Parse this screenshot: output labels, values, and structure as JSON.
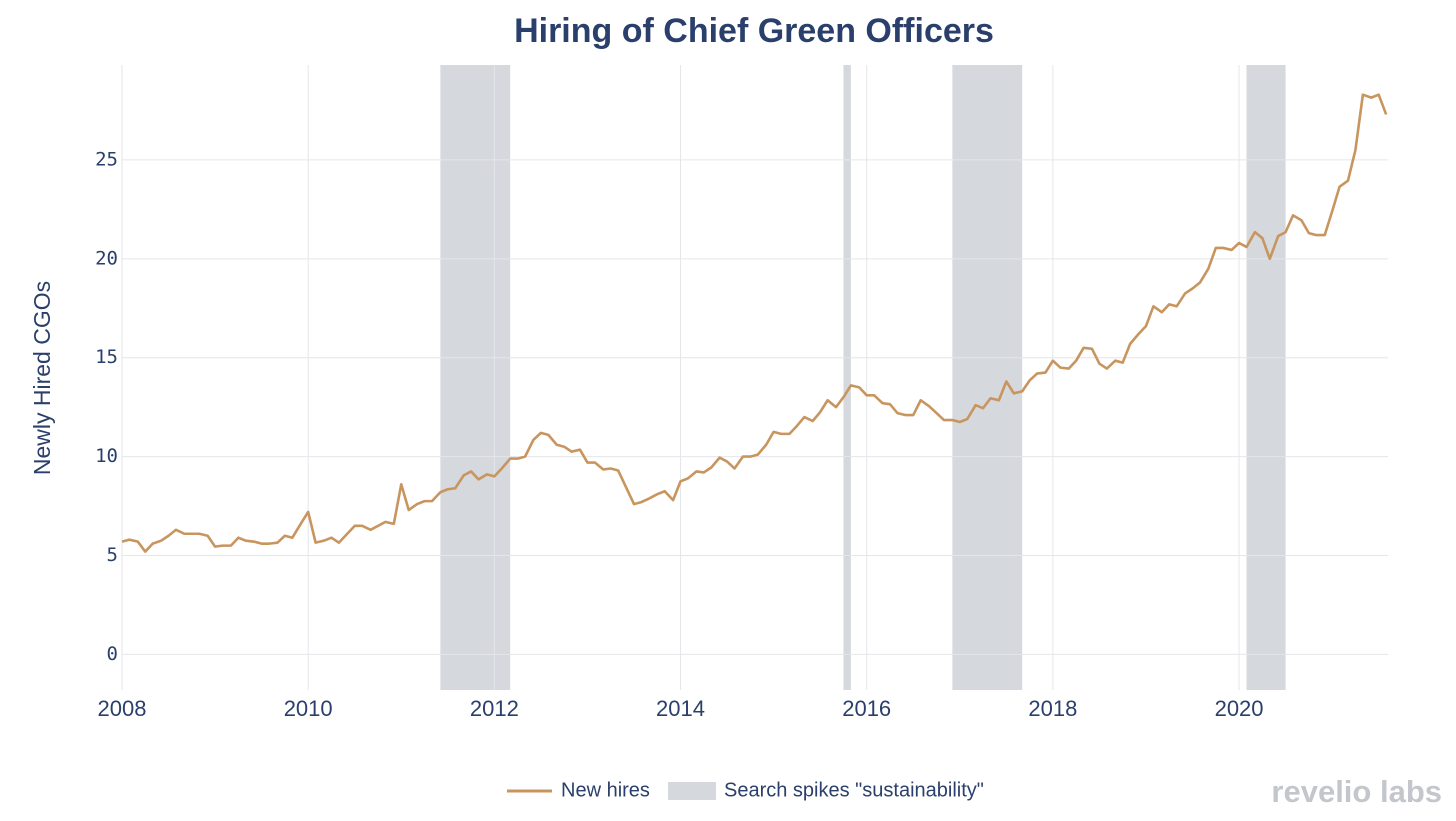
{
  "chart_data": {
    "type": "line",
    "title": "Hiring of Chief Green Officers",
    "y_label": "Newly Hired CGOs",
    "logo": "revelio labs",
    "xlim": [
      2008,
      2021.6
    ],
    "xticks": [
      2008,
      2010,
      2012,
      2014,
      2016,
      2018,
      2020
    ],
    "ylim": [
      -1.8,
      29.8
    ],
    "yticks": [
      0,
      5,
      10,
      15,
      20,
      25
    ],
    "grid": true,
    "legend": "bottom",
    "x": [
      2008.0,
      2008.08,
      2008.17,
      2008.25,
      2008.33,
      2008.42,
      2008.5,
      2008.58,
      2008.67,
      2008.75,
      2008.83,
      2008.92,
      2009.0,
      2009.08,
      2009.17,
      2009.25,
      2009.33,
      2009.42,
      2009.5,
      2009.58,
      2009.67,
      2009.75,
      2009.83,
      2009.92,
      2010.0,
      2010.08,
      2010.17,
      2010.25,
      2010.33,
      2010.42,
      2010.5,
      2010.58,
      2010.67,
      2010.75,
      2010.83,
      2010.92,
      2011.0,
      2011.08,
      2011.17,
      2011.25,
      2011.33,
      2011.42,
      2011.5,
      2011.58,
      2011.67,
      2011.75,
      2011.83,
      2011.92,
      2012.0,
      2012.08,
      2012.17,
      2012.25,
      2012.33,
      2012.42,
      2012.5,
      2012.58,
      2012.67,
      2012.75,
      2012.83,
      2012.92,
      2013.0,
      2013.08,
      2013.17,
      2013.25,
      2013.33,
      2013.42,
      2013.5,
      2013.58,
      2013.67,
      2013.75,
      2013.83,
      2013.92,
      2014.0,
      2014.08,
      2014.17,
      2014.25,
      2014.33,
      2014.42,
      2014.5,
      2014.58,
      2014.67,
      2014.75,
      2014.83,
      2014.92,
      2015.0,
      2015.08,
      2015.17,
      2015.25,
      2015.33,
      2015.42,
      2015.5,
      2015.58,
      2015.67,
      2015.75,
      2015.83,
      2015.92,
      2016.0,
      2016.08,
      2016.17,
      2016.25,
      2016.33,
      2016.42,
      2016.5,
      2016.58,
      2016.67,
      2016.75,
      2016.83,
      2016.92,
      2017.0,
      2017.08,
      2017.17,
      2017.25,
      2017.33,
      2017.42,
      2017.5,
      2017.58,
      2017.67,
      2017.75,
      2017.83,
      2017.92,
      2018.0,
      2018.08,
      2018.17,
      2018.25,
      2018.33,
      2018.42,
      2018.5,
      2018.58,
      2018.67,
      2018.75,
      2018.83,
      2018.92,
      2019.0,
      2019.08,
      2019.17,
      2019.25,
      2019.33,
      2019.42,
      2019.5,
      2019.58,
      2019.67,
      2019.75,
      2019.83,
      2019.92,
      2020.0,
      2020.08,
      2020.17,
      2020.25,
      2020.33,
      2020.42,
      2020.5,
      2020.58,
      2020.67,
      2020.75,
      2020.83,
      2020.92,
      2021.0,
      2021.08,
      2021.17,
      2021.25,
      2021.33,
      2021.42,
      2021.5,
      2021.58
    ],
    "series": [
      {
        "name": "New hires",
        "color": "#c8955f",
        "values": [
          5.7,
          5.8,
          5.7,
          5.2,
          5.6,
          5.75,
          6.0,
          6.3,
          6.1,
          6.1,
          6.1,
          6.0,
          5.45,
          5.5,
          5.5,
          5.9,
          5.75,
          5.7,
          5.6,
          5.6,
          5.65,
          6.0,
          5.9,
          6.6,
          7.2,
          5.65,
          5.75,
          5.9,
          5.65,
          6.1,
          6.5,
          6.5,
          6.3,
          6.5,
          6.7,
          6.6,
          8.6,
          7.3,
          7.6,
          7.75,
          7.75,
          8.2,
          8.35,
          8.4,
          9.05,
          9.25,
          8.85,
          9.1,
          9.0,
          9.4,
          9.9,
          9.9,
          10.0,
          10.85,
          11.2,
          11.1,
          10.6,
          10.5,
          10.25,
          10.35,
          9.7,
          9.7,
          9.35,
          9.4,
          9.3,
          8.4,
          7.6,
          7.7,
          7.9,
          8.1,
          8.25,
          7.8,
          8.75,
          8.9,
          9.25,
          9.2,
          9.45,
          9.95,
          9.75,
          9.4,
          10.0,
          10.0,
          10.1,
          10.6,
          11.25,
          11.15,
          11.15,
          11.55,
          12.0,
          11.8,
          12.25,
          12.85,
          12.5,
          13.0,
          13.6,
          13.5,
          13.1,
          13.1,
          12.7,
          12.65,
          12.2,
          12.1,
          12.1,
          12.85,
          12.55,
          12.2,
          11.85,
          11.85,
          11.75,
          11.9,
          12.6,
          12.45,
          12.95,
          12.85,
          13.8,
          13.2,
          13.3,
          13.85,
          14.2,
          14.25,
          14.85,
          14.5,
          14.45,
          14.85,
          15.5,
          15.45,
          14.7,
          14.45,
          14.85,
          14.75,
          15.7,
          16.2,
          16.6,
          17.6,
          17.3,
          17.7,
          17.6,
          18.25,
          18.5,
          18.8,
          19.5,
          20.55,
          20.55,
          20.45,
          20.8,
          20.6,
          21.35,
          21.05,
          20.0,
          21.15,
          21.35,
          22.2,
          21.95,
          21.3,
          21.2,
          21.2,
          22.4,
          23.65,
          23.95,
          25.5,
          28.3,
          28.15,
          28.3,
          27.3
        ]
      }
    ],
    "bands": {
      "name": "Search spikes \"sustainability\"",
      "color": "#d5d8dd",
      "ranges": [
        [
          2011.42,
          2012.17
        ],
        [
          2015.75,
          2015.83
        ],
        [
          2016.92,
          2017.67
        ],
        [
          2020.08,
          2020.5
        ]
      ]
    }
  }
}
